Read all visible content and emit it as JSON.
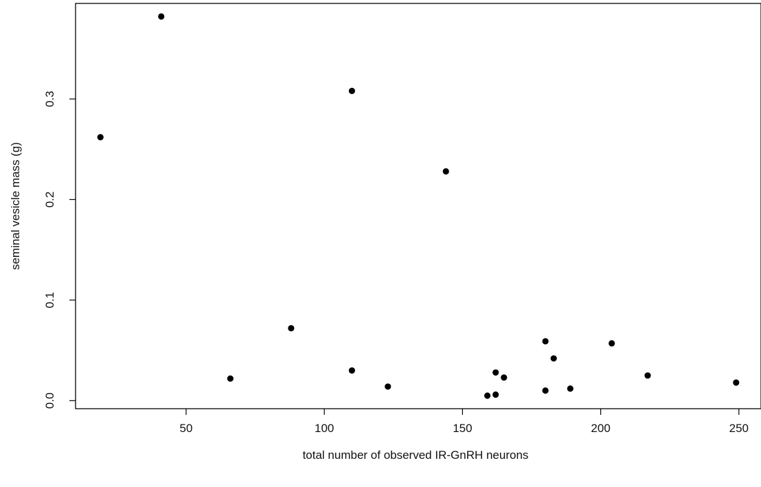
{
  "chart_data": {
    "type": "scatter",
    "title": "",
    "xlabel": "total number of observed IR-GnRH neurons",
    "ylabel": "seminal vesicle mass (g)",
    "xlim": [
      10,
      258
    ],
    "ylim": [
      -0.008,
      0.395
    ],
    "x_ticks": [
      50,
      100,
      150,
      200,
      250
    ],
    "y_ticks": [
      0.0,
      0.1,
      0.2,
      0.3
    ],
    "x_tick_labels": [
      "50",
      "100",
      "150",
      "200",
      "250"
    ],
    "y_tick_labels": [
      "0.0",
      "0.1",
      "0.2",
      "0.3"
    ],
    "grid": false,
    "legend": "none",
    "marker_color": "#000000",
    "points": [
      {
        "x": 19,
        "y": 0.262
      },
      {
        "x": 41,
        "y": 0.382
      },
      {
        "x": 66,
        "y": 0.022
      },
      {
        "x": 88,
        "y": 0.072
      },
      {
        "x": 110,
        "y": 0.308
      },
      {
        "x": 110,
        "y": 0.03
      },
      {
        "x": 123,
        "y": 0.014
      },
      {
        "x": 144,
        "y": 0.228
      },
      {
        "x": 159,
        "y": 0.005
      },
      {
        "x": 162,
        "y": 0.006
      },
      {
        "x": 162,
        "y": 0.028
      },
      {
        "x": 165,
        "y": 0.023
      },
      {
        "x": 180,
        "y": 0.059
      },
      {
        "x": 180,
        "y": 0.01
      },
      {
        "x": 183,
        "y": 0.042
      },
      {
        "x": 189,
        "y": 0.012
      },
      {
        "x": 204,
        "y": 0.057
      },
      {
        "x": 217,
        "y": 0.025
      },
      {
        "x": 249,
        "y": 0.018
      }
    ]
  }
}
